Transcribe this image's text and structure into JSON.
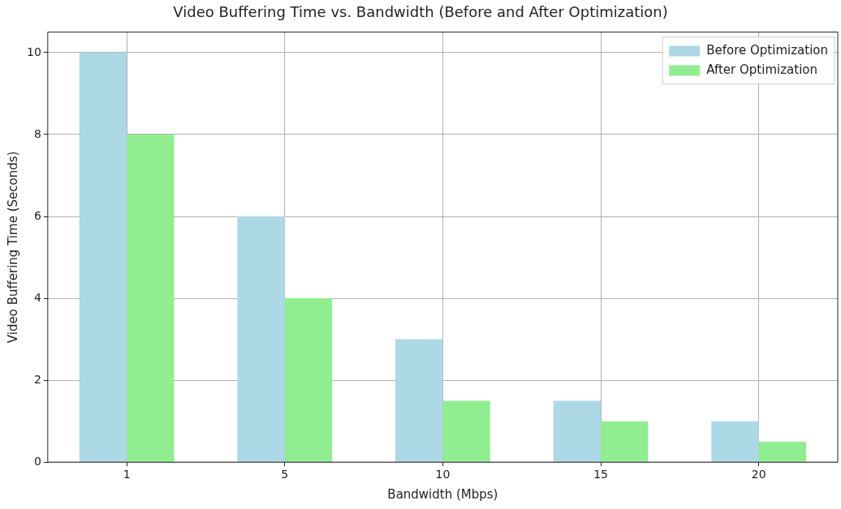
{
  "chart_data": {
    "type": "bar",
    "title": "Video Buffering Time vs. Bandwidth (Before and After Optimization)",
    "xlabel": "Bandwidth (Mbps)",
    "ylabel": "Video Buffering Time (Seconds)",
    "categories": [
      "1",
      "5",
      "10",
      "15",
      "20"
    ],
    "series": [
      {
        "name": "Before Optimization",
        "color": "#add8e6",
        "values": [
          10,
          6,
          3,
          1.5,
          1
        ]
      },
      {
        "name": "After Optimization",
        "color": "#90ee90",
        "values": [
          8,
          4,
          1.5,
          1,
          0.5
        ]
      }
    ],
    "ylim": [
      0,
      10.5
    ],
    "yticks": [
      0,
      2,
      4,
      6,
      8,
      10
    ],
    "grid": true,
    "legend": "top right"
  }
}
